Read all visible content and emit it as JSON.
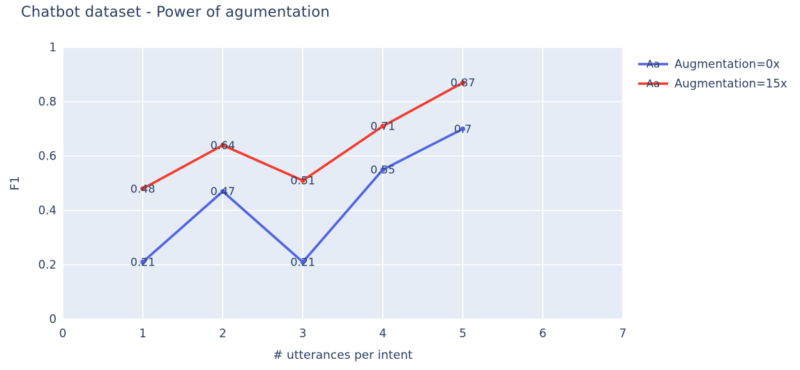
{
  "colors": {
    "text": "#2a3f5f",
    "plot_bg": "#e5ecf6",
    "grid": "#ffffff",
    "page_bg": "#ffffff",
    "series_blue": "#5163e1",
    "series_red": "#f13c2f"
  },
  "legend": {
    "symbol_text": "Aa",
    "items": [
      "Augmentation=0x",
      "Augmentation=15x"
    ]
  },
  "chart_data": {
    "type": "line",
    "title": "Chatbot dataset - Power of agumentation",
    "xlabel": "# utterances per intent",
    "ylabel": "F1",
    "xlim": [
      0,
      7
    ],
    "ylim": [
      0,
      1
    ],
    "xticks": [
      0,
      1,
      2,
      3,
      4,
      5,
      6,
      7
    ],
    "xticklabels": [
      "0",
      "1",
      "2",
      "3",
      "4",
      "5",
      "6",
      "7"
    ],
    "yticks": [
      0,
      0.2,
      0.4,
      0.6,
      0.8,
      1
    ],
    "yticklabels": [
      "0",
      "0.2",
      "0.4",
      "0.6",
      "0.8",
      "1"
    ],
    "grid": true,
    "legend_position": "top-right-outside",
    "x": [
      1,
      2,
      3,
      4,
      5
    ],
    "series": [
      {
        "name": "Augmentation=0x",
        "color": "#5163e1",
        "values": [
          0.21,
          0.47,
          0.21,
          0.55,
          0.7
        ],
        "labels": [
          "0.21",
          "0.47",
          "0.21",
          "0.55",
          "0.7"
        ]
      },
      {
        "name": "Augmentation=15x",
        "color": "#f13c2f",
        "values": [
          0.48,
          0.64,
          0.51,
          0.71,
          0.87
        ],
        "labels": [
          "0.48",
          "0.64",
          "0.51",
          "0.71",
          "0.87"
        ]
      }
    ]
  }
}
